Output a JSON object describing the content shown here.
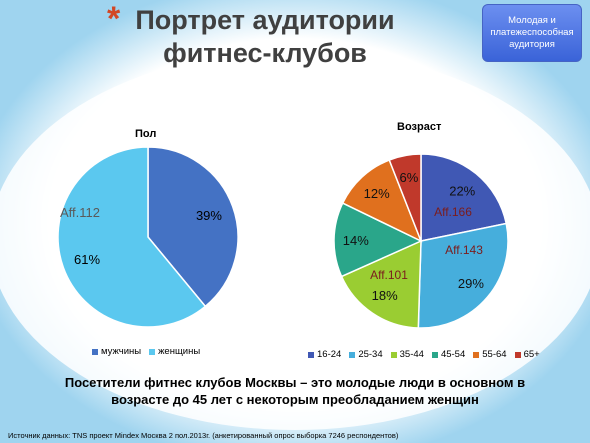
{
  "slide": {
    "star": "*",
    "title": "Портрет аудитории фитнес-клубов",
    "badge": "Молодая и платежеспособная аудитория",
    "caption": "Посетители фитнес клубов Москвы – это молодые люди в основном в возрасте до 45 лет с некоторым преобладанием женщин",
    "source": "Источник данных: TNS проект Mindex Москва 2 пол.2013г. (анкетированный опрос выборка 7246 респондентов)"
  },
  "chart_data": [
    {
      "type": "pie",
      "title": "Пол",
      "categories": [
        "мужчины",
        "женщины"
      ],
      "values": [
        39,
        61
      ],
      "data_labels": [
        "39%",
        "61%"
      ],
      "colors": [
        "#4472c4",
        "#5bc8ef"
      ],
      "annotations": [
        {
          "text": "Aff.112",
          "category": "женщины"
        }
      ],
      "legend_position": "bottom"
    },
    {
      "type": "pie",
      "title": "Возраст",
      "categories": [
        "16-24",
        "25-34",
        "35-44",
        "45-54",
        "55-64",
        "65+"
      ],
      "values": [
        22,
        29,
        18,
        14,
        12,
        6
      ],
      "data_labels": [
        "22%",
        "29%",
        "18%",
        "14%",
        "12%",
        "6%"
      ],
      "colors": [
        "#4058b4",
        "#46aedc",
        "#9acd32",
        "#2aa68a",
        "#e0701e",
        "#c0392b"
      ],
      "annotations": [
        {
          "text": "Aff.166",
          "category": "16-24"
        },
        {
          "text": "Aff.143",
          "category": "25-34"
        },
        {
          "text": "Aff.101",
          "category": "35-44"
        }
      ],
      "legend_position": "bottom"
    }
  ]
}
